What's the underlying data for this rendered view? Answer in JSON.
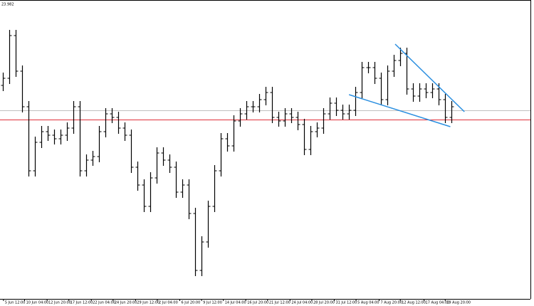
{
  "chart_data": {
    "type": "ohlc",
    "price_label": "23.982",
    "x": [
      0,
      1,
      2,
      3,
      4,
      5,
      6,
      7,
      8,
      9,
      10,
      11,
      12,
      13,
      14,
      15,
      16,
      17,
      18,
      19,
      20,
      21,
      22,
      23,
      24,
      25,
      26,
      27,
      28,
      29,
      30,
      31,
      32,
      33,
      34,
      35,
      36,
      37,
      38,
      39,
      40,
      41,
      42,
      43,
      44,
      45,
      46,
      47,
      48,
      49,
      50,
      51,
      52,
      53,
      54,
      55,
      56,
      57,
      58,
      59,
      60,
      61,
      62,
      63,
      64,
      65,
      66,
      67,
      68,
      69,
      70
    ],
    "open": [
      300,
      310,
      370,
      320,
      270,
      180,
      220,
      235,
      230,
      225,
      230,
      240,
      270,
      180,
      195,
      200,
      235,
      260,
      255,
      240,
      230,
      185,
      160,
      130,
      170,
      205,
      195,
      185,
      150,
      160,
      120,
      40,
      80,
      130,
      180,
      225,
      215,
      250,
      260,
      270,
      270,
      280,
      290,
      255,
      250,
      260,
      255,
      245,
      210,
      235,
      240,
      260,
      275,
      265,
      260,
      265,
      290,
      325,
      325,
      310,
      280,
      320,
      335,
      345,
      295,
      285,
      295,
      290,
      295,
      280,
      255
    ],
    "high": [
      318,
      378,
      378,
      328,
      278,
      228,
      243,
      243,
      238,
      238,
      248,
      278,
      278,
      203,
      208,
      243,
      268,
      268,
      263,
      248,
      238,
      193,
      168,
      178,
      213,
      213,
      203,
      193,
      168,
      168,
      128,
      88,
      138,
      188,
      233,
      233,
      258,
      268,
      278,
      278,
      288,
      298,
      298,
      263,
      268,
      268,
      263,
      253,
      243,
      248,
      268,
      283,
      283,
      273,
      273,
      298,
      333,
      333,
      333,
      318,
      328,
      343,
      353,
      353,
      303,
      303,
      303,
      303,
      303,
      288,
      278
    ],
    "low": [
      292,
      302,
      312,
      262,
      172,
      172,
      212,
      222,
      217,
      217,
      222,
      232,
      172,
      172,
      187,
      192,
      227,
      247,
      232,
      222,
      177,
      152,
      122,
      122,
      162,
      187,
      177,
      142,
      142,
      112,
      32,
      32,
      72,
      122,
      172,
      207,
      207,
      242,
      252,
      262,
      262,
      272,
      247,
      242,
      242,
      247,
      237,
      202,
      202,
      227,
      232,
      252,
      257,
      252,
      252,
      257,
      282,
      317,
      302,
      272,
      272,
      312,
      327,
      287,
      277,
      277,
      282,
      282,
      272,
      247,
      247
    ],
    "close": [
      310,
      370,
      320,
      270,
      180,
      220,
      235,
      230,
      225,
      230,
      240,
      270,
      180,
      195,
      200,
      235,
      260,
      255,
      240,
      230,
      185,
      160,
      130,
      170,
      205,
      195,
      185,
      150,
      160,
      120,
      40,
      80,
      130,
      180,
      225,
      215,
      250,
      260,
      270,
      270,
      280,
      290,
      255,
      250,
      260,
      255,
      245,
      210,
      235,
      240,
      260,
      275,
      265,
      260,
      265,
      290,
      325,
      325,
      310,
      280,
      320,
      335,
      345,
      295,
      285,
      295,
      290,
      295,
      280,
      255,
      270
    ],
    "color": "#000000",
    "xlim": [
      -0.44,
      82.3
    ],
    "ylim": [
      0,
      420
    ],
    "xticks": [
      {
        "value": 0.1,
        "label": "5 Jun 12:00"
      },
      {
        "value": 3.4,
        "label": "10 Jun 04:00"
      },
      {
        "value": 6.9,
        "label": "12 Jun 20:00"
      },
      {
        "value": 10.3,
        "label": "17 Jun 12:00"
      },
      {
        "value": 13.8,
        "label": "22 Jun 04:00"
      },
      {
        "value": 17.2,
        "label": "24 Jun 20:00"
      },
      {
        "value": 20.7,
        "label": "29 Jun 12:00"
      },
      {
        "value": 24.1,
        "label": "2 Jul 04:00"
      },
      {
        "value": 27.6,
        "label": "6 Jul 20:00"
      },
      {
        "value": 31,
        "label": "9 Jul 12:00"
      },
      {
        "value": 34.4,
        "label": "14 Jul 04:00"
      },
      {
        "value": 37.9,
        "label": "16 Jul 20:00"
      },
      {
        "value": 41.3,
        "label": "21 Jul 12:00"
      },
      {
        "value": 44.8,
        "label": "24 Jul 04:00"
      },
      {
        "value": 48.2,
        "label": "28 Jul 20:00"
      },
      {
        "value": 51.7,
        "label": "31 Jul 12:00"
      },
      {
        "value": 55.1,
        "label": "5 Aug 04:00"
      },
      {
        "value": 58.7,
        "label": "7 Aug 20:00"
      },
      {
        "value": 62,
        "label": "12 Aug 12:00"
      },
      {
        "value": 65.7,
        "label": "17 Aug 04:00"
      },
      {
        "value": 69,
        "label": "19 Aug 20:00"
      }
    ],
    "levels": [
      {
        "value": 265,
        "color": "#c0c0c0"
      },
      {
        "value": 252,
        "color": "#e0303a"
      }
    ],
    "trendlines": [
      {
        "x": [
          61.2,
          72
        ],
        "values": [
          358,
          263
        ],
        "color": "#2b8fe0"
      },
      {
        "x": [
          54,
          69.8
        ],
        "values": [
          287,
          242
        ],
        "color": "#2b8fe0"
      }
    ]
  }
}
